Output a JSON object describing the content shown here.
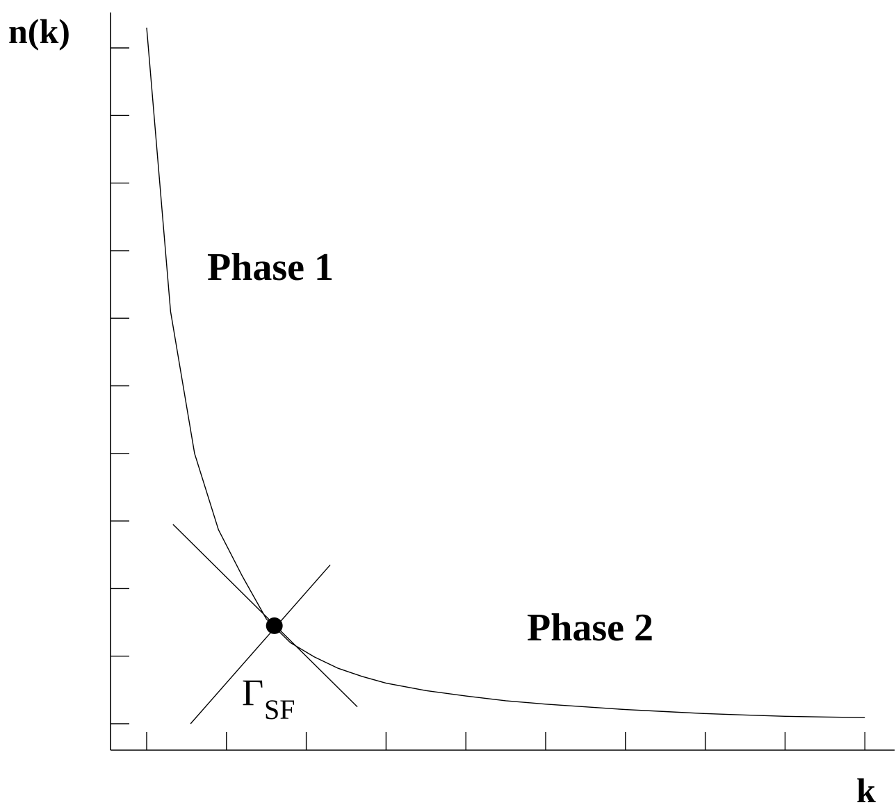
{
  "labels": {
    "y_axis": "n(k)",
    "x_axis": "k",
    "phase1": "Phase 1",
    "phase2": "Phase 2",
    "point_symbol": "Γ",
    "point_subscript": "SF"
  },
  "colors": {
    "ink": "#000000",
    "background": "#ffffff"
  },
  "chart_data": {
    "type": "line",
    "title": "",
    "xlabel": "k",
    "ylabel": "n(k)",
    "x_ticks": 10,
    "y_ticks": 11,
    "series": [
      {
        "x": [
          0.0,
          0.3,
          0.6,
          0.9,
          1.2,
          1.5,
          1.8,
          2.1,
          2.4,
          2.7,
          3.0,
          3.5,
          4.0,
          4.5,
          5.0,
          5.5,
          6.0,
          6.5,
          7.0,
          7.5,
          8.0,
          8.5,
          9.0
        ],
        "y": [
          10.3,
          6.1,
          4.0,
          2.87,
          2.18,
          1.55,
          1.2,
          0.99,
          0.82,
          0.7,
          0.6,
          0.49,
          0.41,
          0.34,
          0.29,
          0.25,
          0.21,
          0.18,
          0.15,
          0.13,
          0.11,
          0.1,
          0.09
        ]
      }
    ],
    "critical_point": {
      "x": 1.6,
      "y": 1.45
    },
    "crossing_lines": [
      {
        "from": [
          0.33,
          2.95
        ],
        "to": [
          2.64,
          0.25
        ]
      },
      {
        "from": [
          0.55,
          0.0
        ],
        "to": [
          2.3,
          2.35
        ]
      }
    ]
  }
}
